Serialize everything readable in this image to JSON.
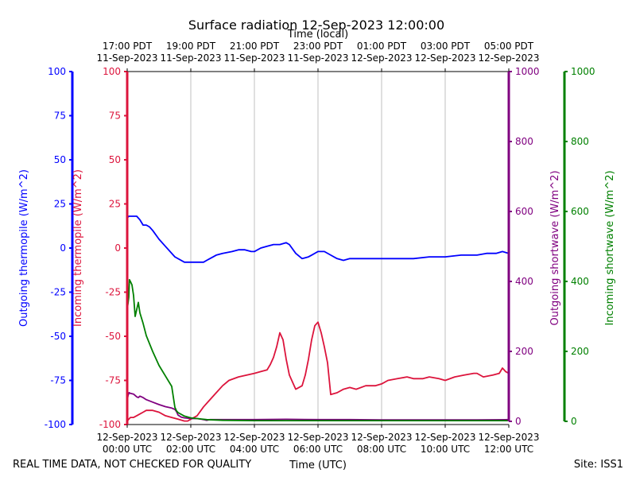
{
  "chart_data": {
    "type": "line",
    "title": "Surface radiation 12-Sep-2023 12:00:00",
    "top_axis_title": "Time (local)",
    "xlabel": "Time (UTC)",
    "footer_left": "REAL TIME DATA, NOT CHECKED FOR QUALITY",
    "footer_right": "Site: ISS1",
    "xlim_hours_utc": [
      0,
      12
    ],
    "grid": "vertical",
    "bottom_ticks": [
      {
        "h": 0,
        "line1": "12-Sep-2023",
        "line2": "00:00 UTC"
      },
      {
        "h": 2,
        "line1": "12-Sep-2023",
        "line2": "02:00 UTC"
      },
      {
        "h": 4,
        "line1": "12-Sep-2023",
        "line2": "04:00 UTC"
      },
      {
        "h": 6,
        "line1": "12-Sep-2023",
        "line2": "06:00 UTC"
      },
      {
        "h": 8,
        "line1": "12-Sep-2023",
        "line2": "08:00 UTC"
      },
      {
        "h": 10,
        "line1": "12-Sep-2023",
        "line2": "10:00 UTC"
      },
      {
        "h": 12,
        "line1": "12-Sep-2023",
        "line2": "12:00 UTC"
      }
    ],
    "top_ticks": [
      {
        "h": 0,
        "line1": "17:00 PDT",
        "line2": "11-Sep-2023"
      },
      {
        "h": 2,
        "line1": "19:00 PDT",
        "line2": "11-Sep-2023"
      },
      {
        "h": 4,
        "line1": "21:00 PDT",
        "line2": "11-Sep-2023"
      },
      {
        "h": 6,
        "line1": "23:00 PDT",
        "line2": "11-Sep-2023"
      },
      {
        "h": 8,
        "line1": "01:00 PDT",
        "line2": "12-Sep-2023"
      },
      {
        "h": 10,
        "line1": "03:00 PDT",
        "line2": "12-Sep-2023"
      },
      {
        "h": 12,
        "line1": "05:00 PDT",
        "line2": "12-Sep-2023"
      }
    ],
    "axes": [
      {
        "id": "outgoing_thermopile",
        "label": "Outgoing thermopile (W/m^2)",
        "color": "#0000ff",
        "ylim": [
          -100,
          100
        ],
        "ticks": [
          100,
          75,
          50,
          25,
          0,
          -25,
          -50,
          -75,
          -100
        ]
      },
      {
        "id": "incoming_thermopile",
        "label": "Incoming thermopile (W/m^2)",
        "color": "#dc143c",
        "ylim": [
          -100,
          100
        ],
        "ticks": [
          100,
          75,
          50,
          25,
          0,
          -25,
          -50,
          -75,
          -100
        ]
      },
      {
        "id": "outgoing_shortwave",
        "label": "Outgoing shortwave (W/m^2)",
        "color": "#800080",
        "ylim": [
          0,
          1000
        ],
        "ticks": [
          1000,
          800,
          600,
          400,
          200,
          0
        ]
      },
      {
        "id": "incoming_shortwave",
        "label": "Incoming shortwave (W/m^2)",
        "color": "#008000",
        "ylim": [
          0,
          1000
        ],
        "ticks": [
          1000,
          800,
          600,
          400,
          200,
          0
        ]
      }
    ],
    "series": [
      {
        "name": "Outgoing thermopile",
        "axis": "outgoing_thermopile",
        "color": "#0000ff",
        "x": [
          0,
          0.05,
          0.1,
          0.2,
          0.3,
          0.4,
          0.5,
          0.6,
          0.7,
          0.8,
          1.0,
          1.2,
          1.5,
          1.8,
          2.0,
          2.2,
          2.4,
          2.5,
          2.6,
          2.8,
          3.0,
          3.3,
          3.5,
          3.7,
          3.9,
          4.0,
          4.2,
          4.4,
          4.6,
          4.8,
          5.0,
          5.1,
          5.3,
          5.5,
          5.7,
          5.8,
          6.0,
          6.2,
          6.4,
          6.6,
          6.8,
          7.0,
          7.3,
          7.6,
          8.0,
          8.5,
          9.0,
          9.5,
          10.0,
          10.5,
          11.0,
          11.3,
          11.6,
          11.8,
          12.0
        ],
        "values": [
          17,
          18,
          18,
          18,
          18,
          16,
          13,
          13,
          12,
          10,
          5,
          1,
          -5,
          -8,
          -8,
          -8,
          -8,
          -7,
          -6,
          -4,
          -3,
          -2,
          -1,
          -1,
          -2,
          -2,
          0,
          1,
          2,
          2,
          3,
          2,
          -3,
          -6,
          -5,
          -4,
          -2,
          -2,
          -4,
          -6,
          -7,
          -6,
          -6,
          -6,
          -6,
          -6,
          -6,
          -5,
          -5,
          -4,
          -4,
          -3,
          -3,
          -2,
          -3
        ]
      },
      {
        "name": "Incoming thermopile",
        "axis": "incoming_thermopile",
        "color": "#dc143c",
        "x": [
          0,
          0.05,
          0.1,
          0.2,
          0.3,
          0.4,
          0.5,
          0.6,
          0.8,
          1.0,
          1.2,
          1.4,
          1.6,
          1.8,
          1.9,
          2.0,
          2.2,
          2.4,
          2.6,
          2.8,
          3.0,
          3.2,
          3.5,
          4.0,
          4.2,
          4.4,
          4.5,
          4.6,
          4.7,
          4.8,
          4.9,
          5.0,
          5.1,
          5.2,
          5.3,
          5.4,
          5.5,
          5.6,
          5.7,
          5.8,
          5.9,
          6.0,
          6.1,
          6.2,
          6.3,
          6.4,
          6.6,
          6.8,
          7.0,
          7.2,
          7.5,
          7.8,
          8.0,
          8.2,
          8.5,
          8.8,
          9.0,
          9.3,
          9.5,
          9.8,
          10.0,
          10.3,
          10.6,
          10.9,
          11.0,
          11.2,
          11.5,
          11.7,
          11.8,
          11.9,
          12.0
        ],
        "values": [
          -98,
          -97,
          -96,
          -96,
          -95,
          -94,
          -93,
          -92,
          -92,
          -93,
          -95,
          -96,
          -97,
          -98,
          -98,
          -97,
          -95,
          -90,
          -86,
          -82,
          -78,
          -75,
          -73,
          -71,
          -70,
          -69,
          -66,
          -62,
          -56,
          -48,
          -52,
          -63,
          -72,
          -76,
          -80,
          -79,
          -78,
          -72,
          -63,
          -52,
          -44,
          -42,
          -48,
          -56,
          -65,
          -83,
          -82,
          -80,
          -79,
          -80,
          -78,
          -78,
          -77,
          -75,
          -74,
          -73,
          -74,
          -74,
          -73,
          -74,
          -75,
          -73,
          -72,
          -71,
          -71,
          -73,
          -72,
          -71,
          -68,
          -70,
          -71
        ]
      },
      {
        "name": "Outgoing shortwave",
        "axis": "outgoing_shortwave",
        "color": "#800080",
        "x": [
          0,
          0.03,
          0.06,
          0.1,
          0.2,
          0.3,
          0.35,
          0.4,
          0.5,
          0.6,
          0.8,
          1.0,
          1.2,
          1.4,
          1.5,
          1.55,
          1.6,
          1.7,
          1.8,
          2.0,
          2.2,
          2.4,
          2.5,
          2.6,
          3.0,
          4.0,
          5.0,
          6.0,
          7.0,
          8.0,
          9.0,
          10.0,
          11.0,
          12.0
        ],
        "values": [
          60,
          75,
          82,
          80,
          78,
          70,
          68,
          72,
          68,
          62,
          55,
          48,
          42,
          38,
          34,
          28,
          18,
          12,
          10,
          8,
          8,
          5,
          3,
          5,
          5,
          5,
          6,
          5,
          5,
          4,
          4,
          4,
          4,
          5
        ]
      },
      {
        "name": "Incoming shortwave",
        "axis": "incoming_shortwave",
        "color": "#008000",
        "x": [
          0,
          0.03,
          0.05,
          0.07,
          0.1,
          0.15,
          0.2,
          0.25,
          0.3,
          0.35,
          0.4,
          0.5,
          0.6,
          0.8,
          1.0,
          1.2,
          1.4,
          1.45,
          1.5,
          1.55,
          1.6,
          1.8,
          2.0,
          2.5,
          3.0,
          4.0,
          5.0,
          6.0,
          7.0,
          8.0,
          9.0,
          10.0,
          11.0,
          12.0
        ],
        "values": [
          320,
          340,
          355,
          405,
          400,
          390,
          360,
          300,
          320,
          340,
          310,
          280,
          245,
          200,
          160,
          130,
          100,
          70,
          40,
          30,
          25,
          15,
          10,
          5,
          3,
          2,
          2,
          2,
          2,
          2,
          2,
          2,
          2,
          2
        ]
      }
    ]
  }
}
